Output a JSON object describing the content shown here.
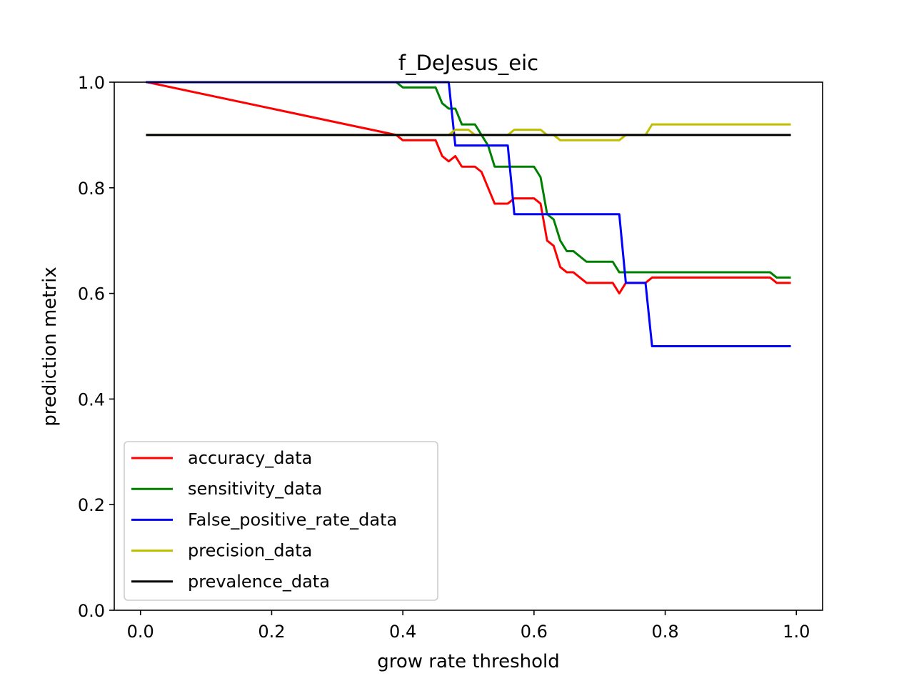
{
  "chart_data": {
    "type": "line",
    "title": "f_DeJesus_eic",
    "xlabel": "grow rate threshold",
    "ylabel": "prediction metrix",
    "xlim": [
      -0.04,
      1.04
    ],
    "ylim": [
      0.0,
      1.0
    ],
    "xticks": [
      0.0,
      0.2,
      0.4,
      0.6,
      0.8,
      1.0
    ],
    "xtick_labels": [
      "0.0",
      "0.2",
      "0.4",
      "0.6",
      "0.8",
      "1.0"
    ],
    "yticks": [
      0.0,
      0.2,
      0.4,
      0.6,
      0.8,
      1.0
    ],
    "ytick_labels": [
      "0.0",
      "0.2",
      "0.4",
      "0.6",
      "0.8",
      "1.0"
    ],
    "grid": false,
    "legend_position": "lower-left",
    "series": [
      {
        "name": "accuracy_data",
        "color": "#ff0000",
        "x": [
          0.01,
          0.39,
          0.4,
          0.45,
          0.46,
          0.47,
          0.48,
          0.49,
          0.51,
          0.52,
          0.53,
          0.54,
          0.56,
          0.57,
          0.6,
          0.61,
          0.62,
          0.63,
          0.64,
          0.65,
          0.66,
          0.68,
          0.72,
          0.73,
          0.74,
          0.77,
          0.78,
          0.96,
          0.97,
          0.99
        ],
        "y": [
          1.0,
          0.9,
          0.89,
          0.89,
          0.86,
          0.85,
          0.86,
          0.84,
          0.84,
          0.83,
          0.8,
          0.77,
          0.77,
          0.78,
          0.78,
          0.77,
          0.7,
          0.69,
          0.65,
          0.64,
          0.64,
          0.62,
          0.62,
          0.6,
          0.62,
          0.62,
          0.63,
          0.63,
          0.62,
          0.62
        ]
      },
      {
        "name": "sensitivity_data",
        "color": "#008000",
        "x": [
          0.01,
          0.39,
          0.4,
          0.45,
          0.46,
          0.47,
          0.48,
          0.49,
          0.51,
          0.52,
          0.53,
          0.54,
          0.56,
          0.6,
          0.61,
          0.62,
          0.63,
          0.64,
          0.65,
          0.66,
          0.68,
          0.72,
          0.73,
          0.74,
          0.96,
          0.97,
          0.99
        ],
        "y": [
          1.0,
          1.0,
          0.99,
          0.99,
          0.96,
          0.95,
          0.95,
          0.92,
          0.92,
          0.9,
          0.88,
          0.84,
          0.84,
          0.84,
          0.82,
          0.75,
          0.74,
          0.7,
          0.68,
          0.68,
          0.66,
          0.66,
          0.64,
          0.64,
          0.64,
          0.63,
          0.63
        ]
      },
      {
        "name": "False_positive_rate_data",
        "color": "#0000ff",
        "x": [
          0.01,
          0.47,
          0.48,
          0.56,
          0.57,
          0.73,
          0.74,
          0.77,
          0.78,
          0.99
        ],
        "y": [
          1.0,
          1.0,
          0.88,
          0.88,
          0.75,
          0.75,
          0.62,
          0.62,
          0.5,
          0.5
        ]
      },
      {
        "name": "precision_data",
        "color": "#bfbf00",
        "x": [
          0.01,
          0.46,
          0.47,
          0.48,
          0.5,
          0.51,
          0.55,
          0.56,
          0.57,
          0.61,
          0.62,
          0.63,
          0.64,
          0.73,
          0.74,
          0.77,
          0.78,
          0.99
        ],
        "y": [
          0.9,
          0.9,
          0.9,
          0.91,
          0.91,
          0.9,
          0.9,
          0.9,
          0.91,
          0.91,
          0.9,
          0.9,
          0.89,
          0.89,
          0.9,
          0.9,
          0.92,
          0.92
        ]
      },
      {
        "name": "prevalence_data",
        "color": "#000000",
        "x": [
          0.01,
          0.99
        ],
        "y": [
          0.9,
          0.9
        ]
      }
    ]
  }
}
